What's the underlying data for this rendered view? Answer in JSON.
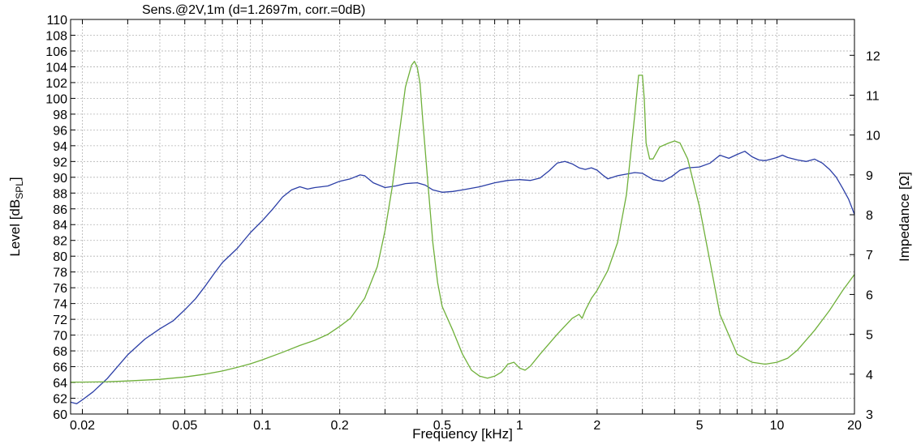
{
  "chart_data": {
    "type": "line",
    "title": "Sens.@2V,1m  (d=1.2697m, corr.=0dB)",
    "xlabel": "Frequency [kHz]",
    "ylabel_left": "Level [dB",
    "ylabel_left_sub": "SPL",
    "ylabel_left_end": "]",
    "ylabel_right": "Impedance [Ω]",
    "x_scale": "log",
    "xlim": [
      0.018,
      20
    ],
    "ylim_left": [
      60,
      110
    ],
    "ylim_right": [
      3,
      12.9
    ],
    "grid": true,
    "x_ticks": [
      {
        "v": 0.02,
        "label": "0.02"
      },
      {
        "v": 0.05,
        "label": "0.05"
      },
      {
        "v": 0.1,
        "label": "0.1"
      },
      {
        "v": 0.2,
        "label": "0.2"
      },
      {
        "v": 0.5,
        "label": "0.5"
      },
      {
        "v": 1,
        "label": "1"
      },
      {
        "v": 2,
        "label": "2"
      },
      {
        "v": 5,
        "label": "5"
      },
      {
        "v": 10,
        "label": "10"
      },
      {
        "v": 20,
        "label": "20"
      }
    ],
    "y_left_ticks": [
      "60",
      "62",
      "64",
      "66",
      "68",
      "70",
      "72",
      "74",
      "76",
      "78",
      "80",
      "82",
      "84",
      "86",
      "88",
      "90",
      "92",
      "94",
      "96",
      "98",
      "100",
      "102",
      "104",
      "106",
      "108",
      "110"
    ],
    "y_right_ticks": [
      "3",
      "4",
      "5",
      "6",
      "7",
      "8",
      "9",
      "10",
      "11",
      "12"
    ],
    "series": [
      {
        "axis": "left",
        "color": "#2b3ea6",
        "x": [
          0.018,
          0.019,
          0.02,
          0.022,
          0.025,
          0.03,
          0.035,
          0.04,
          0.045,
          0.05,
          0.055,
          0.06,
          0.065,
          0.07,
          0.08,
          0.09,
          0.1,
          0.11,
          0.12,
          0.13,
          0.14,
          0.15,
          0.16,
          0.17,
          0.18,
          0.2,
          0.22,
          0.24,
          0.25,
          0.27,
          0.3,
          0.33,
          0.36,
          0.4,
          0.43,
          0.46,
          0.5,
          0.55,
          0.6,
          0.7,
          0.8,
          0.9,
          1.0,
          1.1,
          1.2,
          1.3,
          1.4,
          1.5,
          1.6,
          1.7,
          1.8,
          1.9,
          2.0,
          2.1,
          2.2,
          2.4,
          2.6,
          2.8,
          3.0,
          3.3,
          3.6,
          3.9,
          4.2,
          4.5,
          5.0,
          5.5,
          6.0,
          6.5,
          7.0,
          7.5,
          8.0,
          8.5,
          9.0,
          9.5,
          10,
          10.5,
          11,
          12,
          13,
          14,
          15,
          16,
          17,
          18,
          19,
          20
        ],
        "y": [
          61.5,
          61.3,
          61.8,
          62.8,
          64.5,
          67.5,
          69.5,
          70.8,
          71.8,
          73.2,
          74.6,
          76.2,
          77.8,
          79.2,
          81.0,
          83.0,
          84.5,
          86.0,
          87.5,
          88.4,
          88.8,
          88.5,
          88.7,
          88.8,
          88.9,
          89.5,
          89.8,
          90.3,
          90.2,
          89.3,
          88.7,
          88.9,
          89.2,
          89.3,
          89.0,
          88.4,
          88.1,
          88.2,
          88.4,
          88.8,
          89.3,
          89.6,
          89.7,
          89.6,
          89.9,
          90.8,
          91.8,
          92.0,
          91.7,
          91.2,
          91.0,
          91.2,
          90.9,
          90.3,
          89.8,
          90.2,
          90.4,
          90.6,
          90.5,
          89.7,
          89.5,
          90.1,
          90.9,
          91.2,
          91.3,
          91.8,
          92.8,
          92.4,
          92.9,
          93.3,
          92.6,
          92.2,
          92.1,
          92.3,
          92.5,
          92.8,
          92.5,
          92.2,
          92.0,
          92.3,
          91.8,
          91.0,
          90.0,
          88.6,
          87.2,
          85.3
        ]
      },
      {
        "axis": "right",
        "color": "#6fb03a",
        "x": [
          0.018,
          0.02,
          0.025,
          0.03,
          0.04,
          0.05,
          0.06,
          0.07,
          0.08,
          0.09,
          0.1,
          0.12,
          0.14,
          0.16,
          0.18,
          0.2,
          0.22,
          0.25,
          0.28,
          0.3,
          0.32,
          0.34,
          0.36,
          0.38,
          0.39,
          0.4,
          0.41,
          0.42,
          0.44,
          0.46,
          0.48,
          0.5,
          0.55,
          0.6,
          0.65,
          0.7,
          0.75,
          0.8,
          0.85,
          0.9,
          0.95,
          1.0,
          1.05,
          1.1,
          1.2,
          1.4,
          1.6,
          1.7,
          1.75,
          1.8,
          1.9,
          2.0,
          2.2,
          2.4,
          2.6,
          2.8,
          2.9,
          3.0,
          3.05,
          3.1,
          3.2,
          3.3,
          3.5,
          3.8,
          4.0,
          4.2,
          4.5,
          5.0,
          5.5,
          6.0,
          7.0,
          8.0,
          9.0,
          10,
          11,
          12,
          14,
          16,
          18,
          20
        ],
        "y": [
          3.8,
          3.8,
          3.81,
          3.83,
          3.87,
          3.93,
          4.0,
          4.08,
          4.17,
          4.26,
          4.36,
          4.55,
          4.72,
          4.85,
          5.0,
          5.2,
          5.4,
          5.9,
          6.7,
          7.6,
          8.7,
          10.0,
          11.2,
          11.75,
          11.85,
          11.7,
          11.3,
          10.4,
          8.8,
          7.3,
          6.3,
          5.7,
          5.1,
          4.5,
          4.1,
          3.95,
          3.9,
          3.95,
          4.05,
          4.25,
          4.3,
          4.15,
          4.1,
          4.2,
          4.5,
          5.0,
          5.4,
          5.5,
          5.4,
          5.6,
          5.9,
          6.1,
          6.6,
          7.3,
          8.5,
          10.5,
          11.5,
          11.5,
          10.9,
          9.8,
          9.4,
          9.4,
          9.7,
          9.8,
          9.85,
          9.8,
          9.4,
          8.2,
          6.8,
          5.5,
          4.5,
          4.3,
          4.25,
          4.3,
          4.4,
          4.6,
          5.1,
          5.6,
          6.1,
          6.5
        ]
      }
    ]
  }
}
